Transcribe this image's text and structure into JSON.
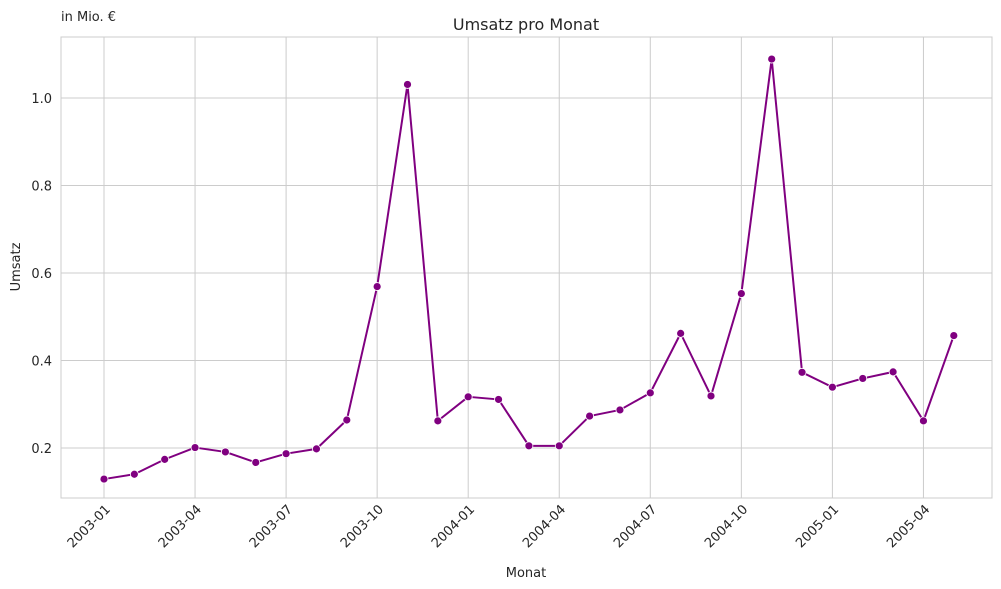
{
  "chart_data": {
    "type": "line",
    "title": "Umsatz pro Monat",
    "unit_note": "in Mio. €",
    "xlabel": "Monat",
    "ylabel": "Umsatz",
    "x": [
      "2003-01",
      "2003-02",
      "2003-03",
      "2003-04",
      "2003-05",
      "2003-06",
      "2003-07",
      "2003-08",
      "2003-09",
      "2003-10",
      "2003-11",
      "2003-12",
      "2004-01",
      "2004-02",
      "2004-03",
      "2004-04",
      "2004-05",
      "2004-06",
      "2004-07",
      "2004-08",
      "2004-09",
      "2004-10",
      "2004-11",
      "2004-12",
      "2005-01",
      "2005-02",
      "2005-03",
      "2005-04",
      "2005-05"
    ],
    "series": [
      {
        "values": [
          0.129,
          0.14,
          0.174,
          0.201,
          0.191,
          0.167,
          0.187,
          0.198,
          0.264,
          0.569,
          1.031,
          0.262,
          0.317,
          0.311,
          0.205,
          0.205,
          0.273,
          0.287,
          0.326,
          0.462,
          0.319,
          0.553,
          1.089,
          0.373,
          0.339,
          0.359,
          0.374,
          0.262,
          0.457
        ],
        "color": "#800080"
      }
    ],
    "x_ticks": [
      "2003-01",
      "2003-04",
      "2003-07",
      "2003-10",
      "2004-01",
      "2004-04",
      "2004-07",
      "2004-10",
      "2005-01",
      "2005-04"
    ],
    "y_ticks": [
      "0.2",
      "0.4",
      "0.6",
      "0.8",
      "1.0"
    ],
    "ylim": [
      0.084,
      1.136
    ],
    "grid": true,
    "legend": false
  }
}
